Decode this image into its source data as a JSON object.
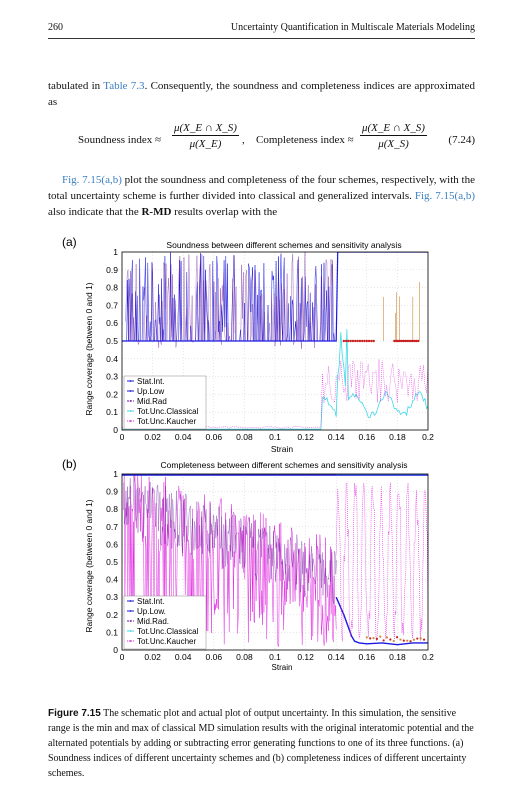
{
  "header": {
    "page_number": "260",
    "running_title": "Uncertainty Quantification in Multiscale Materials Modeling"
  },
  "paragraph1": {
    "pre": "tabulated in ",
    "link": "Table 7.3",
    "post": ". Consequently, the soundness and completeness indices are approximated as"
  },
  "equation": {
    "soundness_label": "Soundness index ≈",
    "soundness_num": "μ(X_E ∩ X_S)",
    "soundness_den": "μ(X_E)",
    "completeness_label": "Completeness index ≈",
    "completeness_num": "μ(X_E ∩ X_S)",
    "completeness_den": "μ(X_S)",
    "number": "(7.24)"
  },
  "paragraph2": {
    "link1": "Fig. 7.15(a,b)",
    "text1": " plot the soundness and completeness of the four schemes, respectively, with the total uncertainty scheme is further divided into classical and generalized intervals. ",
    "link2": "Fig. 7.15(a,b)",
    "text2": " also indicate that the ",
    "bold": "R-MD",
    "text3": " results overlap with the"
  },
  "figure": {
    "panels": [
      {
        "label": "(a)",
        "title": "Soundness between different schemes and sensitivity analysis",
        "xlabel": "Strain",
        "ylabel": "Range coverage (between 0 and 1)",
        "legend": [
          "Stat.Int.",
          "Up.Low",
          "Mid.Rad",
          "Tot.Unc.Classical",
          "Tot.Unc.Kaucher"
        ]
      },
      {
        "label": "(b)",
        "title": "Completeness between different schemes and sensitivity analysis",
        "xlabel": "Strain",
        "ylabel": "Range coverage (between 0 and 1)",
        "legend": [
          "Stat.Int.",
          "Up.Low.",
          "Mid.Rad.",
          "Tot.Unc.Classical",
          "Tot.Unc.Kaucher"
        ]
      }
    ]
  },
  "chart_data": [
    {
      "type": "scatter",
      "title": "Soundness between different schemes and sensitivity analysis",
      "xlabel": "Strain",
      "ylabel": "Range coverage (between 0 and 1)",
      "xlim": [
        0,
        0.2
      ],
      "ylim": [
        0,
        1
      ],
      "xticks": [
        "0",
        "0.02",
        "0.04",
        "0.06",
        "0.08",
        "0.1",
        "0.12",
        "0.14",
        "0.16",
        "0.18",
        "0.2"
      ],
      "yticks": [
        "0",
        "0.1",
        "0.2",
        "0.3",
        "0.4",
        "0.5",
        "0.6",
        "0.7",
        "0.8",
        "0.9",
        "1"
      ],
      "legend_position": "bottom-left",
      "grid": true,
      "series": [
        {
          "name": "Stat.Int.",
          "color": "#1a1ae0",
          "x": [
            0.0,
            0.14,
            0.141,
            0.2
          ],
          "y": [
            0.5,
            0.5,
            1.0,
            1.0
          ]
        },
        {
          "name": "Up.Low",
          "color": "#1a1ae0",
          "x": [
            0.005,
            0.02,
            0.04,
            0.06,
            0.08,
            0.1,
            0.12,
            0.14
          ],
          "y": [
            0.5,
            0.9,
            0.5,
            0.95,
            0.5,
            0.85,
            0.5,
            0.5
          ]
        },
        {
          "name": "Mid.Rad",
          "color": "#6a1a9a",
          "x": [
            0.005,
            0.03,
            0.05,
            0.07,
            0.09,
            0.11,
            0.13
          ],
          "y": [
            0.5,
            0.8,
            0.5,
            0.9,
            0.5,
            0.7,
            0.5
          ]
        },
        {
          "name": "Tot.Unc.Classical",
          "color": "#3fd8e8",
          "x": [
            0.0,
            0.13,
            0.14,
            0.145,
            0.15,
            0.16,
            0.18,
            0.2
          ],
          "y": [
            0.0,
            0.0,
            0.1,
            0.3,
            0.15,
            0.2,
            0.17,
            0.15
          ]
        },
        {
          "name": "Tot.Unc.Kaucher",
          "color": "#e02ae0",
          "x": [
            0.0,
            0.13,
            0.14,
            0.15,
            0.16,
            0.17,
            0.18,
            0.19,
            0.2
          ],
          "y": [
            0.0,
            0.01,
            0.05,
            0.1,
            0.2,
            0.35,
            0.3,
            0.25,
            0.28
          ]
        }
      ]
    },
    {
      "type": "scatter",
      "title": "Completeness between different schemes and sensitivity analysis",
      "xlabel": "Strain",
      "ylabel": "Range coverage (between 0 and 1)",
      "xlim": [
        0,
        0.2
      ],
      "ylim": [
        0,
        1
      ],
      "xticks": [
        "0",
        "0.02",
        "0.04",
        "0.06",
        "0.08",
        "0.1",
        "0.12",
        "0.14",
        "0.16",
        "0.18",
        "0.2"
      ],
      "yticks": [
        "0",
        "0.1",
        "0.2",
        "0.3",
        "0.4",
        "0.5",
        "0.6",
        "0.7",
        "0.8",
        "0.9",
        "1"
      ],
      "legend_position": "bottom-left",
      "grid": true,
      "series": [
        {
          "name": "Stat.Int.",
          "color": "#1a1ae0",
          "x": [
            0.0,
            0.2
          ],
          "y": [
            1.0,
            1.0
          ]
        },
        {
          "name": "Up.Low.",
          "color": "#1a1ae0",
          "x": [
            0.0,
            0.04,
            0.08,
            0.12,
            0.14,
            0.15,
            0.16,
            0.2
          ],
          "y": [
            0.8,
            0.7,
            0.6,
            0.5,
            0.3,
            0.05,
            0.03,
            0.04
          ]
        },
        {
          "name": "Mid.Rad.",
          "color": "#6a1a9a",
          "x": [
            0.0,
            0.04,
            0.08,
            0.12,
            0.14
          ],
          "y": [
            0.8,
            0.65,
            0.55,
            0.45,
            0.35
          ]
        },
        {
          "name": "Tot.Unc.Classical",
          "color": "#3fd8e8",
          "x": [
            0.0,
            0.14,
            0.16,
            0.2
          ],
          "y": [
            1.0,
            1.0,
            1.0,
            1.0
          ]
        },
        {
          "name": "Tot.Unc.Kaucher",
          "color": "#e02ae0",
          "x": [
            0.0,
            0.04,
            0.08,
            0.12,
            0.14,
            0.15,
            0.16,
            0.17,
            0.18,
            0.19,
            0.2
          ],
          "y": [
            0.8,
            0.65,
            0.55,
            0.45,
            0.5,
            0.8,
            0.15,
            0.9,
            0.6,
            0.95,
            0.7
          ]
        }
      ]
    }
  ],
  "caption": {
    "label": "Figure 7.15",
    "text": " The schematic plot and actual plot of output uncertainty. In this simulation, the sensitive range is the min and max of classical MD simulation results with the original interatomic potential and the alternated potentials by adding or subtracting error generating functions to one of its three functions. (a) Soundness indices of different uncertainty schemes and (b) completeness indices of different uncertainty schemes."
  }
}
